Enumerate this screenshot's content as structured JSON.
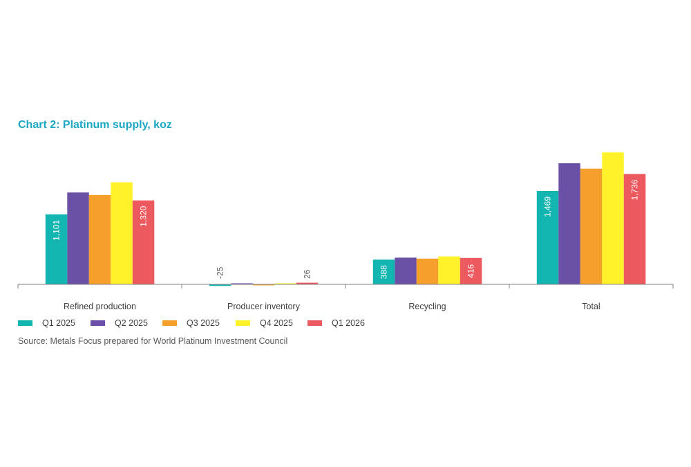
{
  "chart_data": {
    "type": "bar",
    "title": "Chart 2: Platinum supply, koz",
    "categories": [
      "Refined production",
      "Producer inventory",
      "Recycling",
      "Total"
    ],
    "series": [
      {
        "name": "Q1 2025",
        "color": "#12b5b0",
        "values": [
          1101,
          -25,
          388,
          1469
        ],
        "labels": [
          "1,101",
          "-25",
          "388",
          "1,469"
        ]
      },
      {
        "name": "Q2 2025",
        "color": "#6a51a6",
        "values": [
          1445,
          10,
          420,
          1905
        ],
        "labels": [
          null,
          null,
          null,
          null
        ]
      },
      {
        "name": "Q3 2025",
        "color": "#f5a02a",
        "values": [
          1405,
          -15,
          405,
          1820
        ],
        "labels": [
          null,
          null,
          null,
          null
        ]
      },
      {
        "name": "Q4 2025",
        "color": "#fff22a",
        "values": [
          1605,
          15,
          440,
          2075
        ],
        "labels": [
          null,
          null,
          null,
          null
        ]
      },
      {
        "name": "Q1  2026",
        "color": "#ec5a60",
        "values": [
          1320,
          26,
          416,
          1736
        ],
        "labels": [
          "1,320",
          "26",
          "416",
          "1,736"
        ]
      }
    ],
    "legend_position": "bottom-left",
    "grid": false
  },
  "source": "Source: Metals Focus prepared for World Platinum Investment Council"
}
